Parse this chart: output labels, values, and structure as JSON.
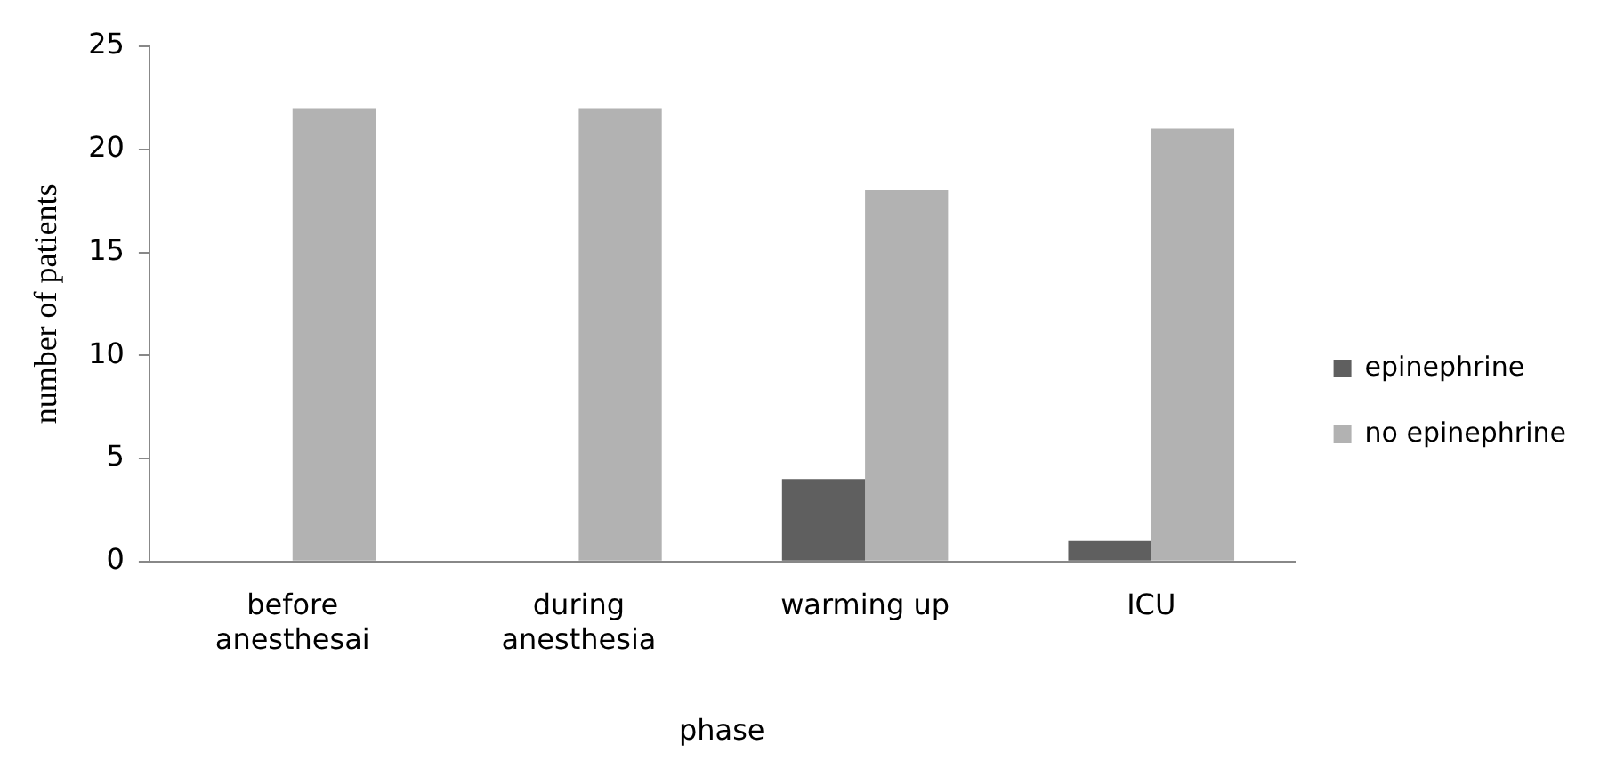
{
  "chart_data": {
    "type": "bar",
    "xlabel": "phase",
    "ylabel": "number of patients",
    "categories": [
      "before anesthesai",
      "during anesthesia",
      "warming up",
      "ICU"
    ],
    "series": [
      {
        "name": "epinephrine",
        "color": "#5f5f5f",
        "values": [
          0,
          0,
          4,
          1
        ]
      },
      {
        "name": "no epinephrine",
        "color": "#b2b2b2",
        "values": [
          22,
          22,
          18,
          21
        ]
      }
    ],
    "ylim": [
      0,
      25
    ],
    "yticks": [
      0,
      5,
      10,
      15,
      20,
      25
    ],
    "grid": false,
    "legend": "right"
  }
}
